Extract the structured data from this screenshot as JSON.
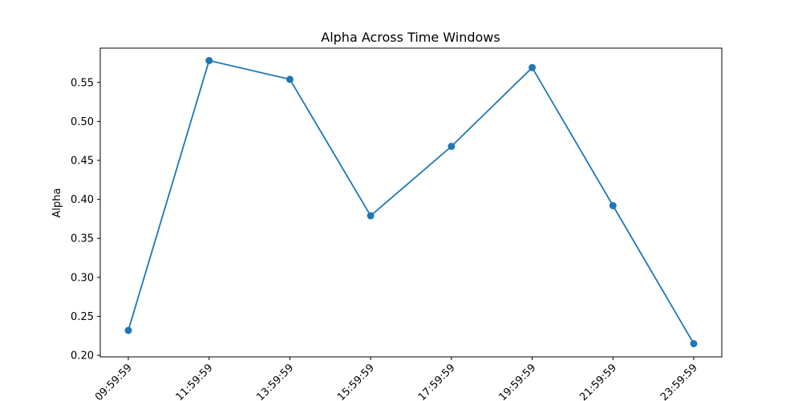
{
  "chart_data": {
    "type": "line",
    "title": "Alpha Across Time Windows",
    "xlabel": "",
    "ylabel": "Alpha",
    "categories": [
      "09:59:59",
      "11:59:59",
      "13:59:59",
      "15:59:59",
      "17:59:59",
      "19:59:59",
      "21:59:59",
      "23:59:59"
    ],
    "series": [
      {
        "values": [
          0.232,
          0.578,
          0.554,
          0.379,
          0.468,
          0.569,
          0.392,
          0.215
        ],
        "color": "#1f77b4",
        "marker": "circle"
      }
    ],
    "ylim": [
      0.198,
      0.594
    ],
    "yticks": [
      0.2,
      0.25,
      0.3,
      0.35,
      0.4,
      0.45,
      0.5,
      0.55
    ],
    "ytick_labels": [
      "0.20",
      "0.25",
      "0.30",
      "0.35",
      "0.40",
      "0.45",
      "0.50",
      "0.55"
    ],
    "grid": false,
    "legend": "none"
  }
}
